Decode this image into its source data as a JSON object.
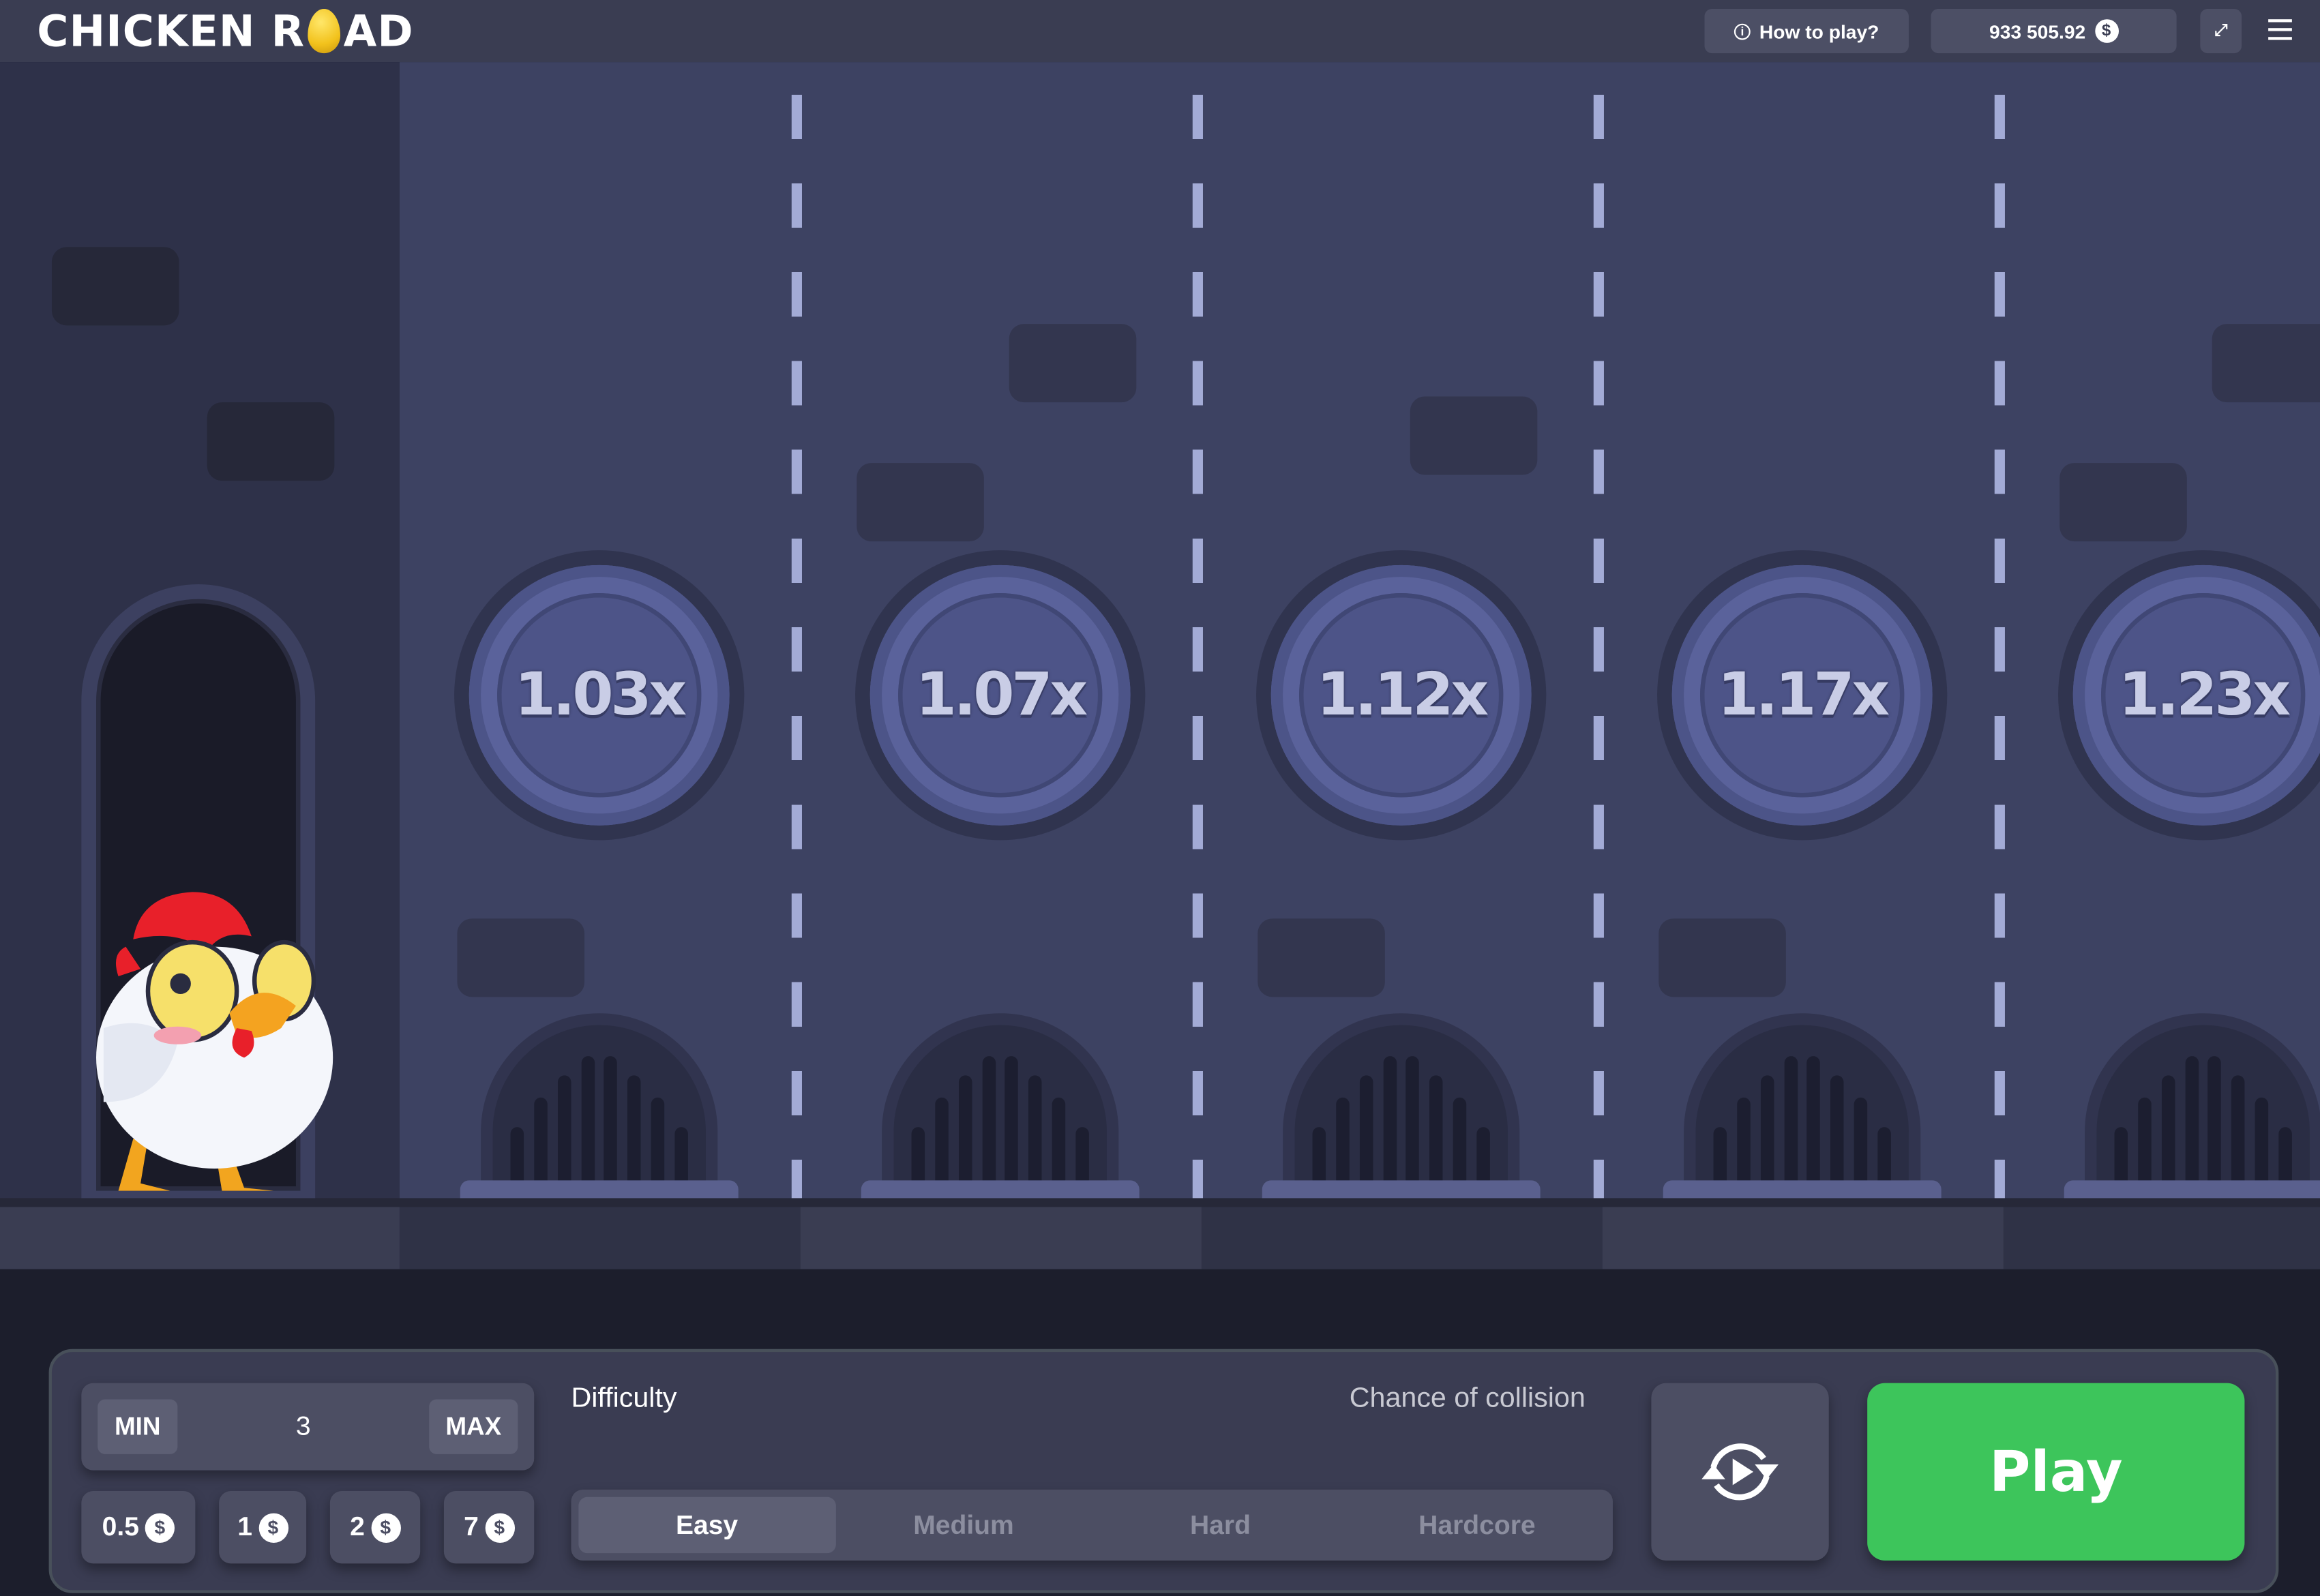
{
  "header": {
    "logo": "CHICKEN ROAD",
    "logo_left": "CHICKEN R",
    "logo_right": "AD",
    "how_to_play": "How to play?",
    "balance": "933 505.92",
    "currency_icon": "dollar-icon"
  },
  "lanes": {
    "multipliers": [
      "1.03x",
      "1.07x",
      "1.12x",
      "1.17x",
      "1.23x"
    ]
  },
  "controls": {
    "bet": {
      "min_label": "MIN",
      "value": "3",
      "max_label": "MAX"
    },
    "quick_bets": [
      "0.5",
      "1",
      "2",
      "7"
    ],
    "difficulty_label": "Difficulty",
    "collision_label": "Chance of collision",
    "difficulties": [
      "Easy",
      "Medium",
      "Hard",
      "Hardcore"
    ],
    "selected_difficulty": "Easy",
    "play_label": "Play"
  },
  "colors": {
    "play": "#3dc55b",
    "lane": "#3d4262",
    "header": "#3a3d52"
  }
}
